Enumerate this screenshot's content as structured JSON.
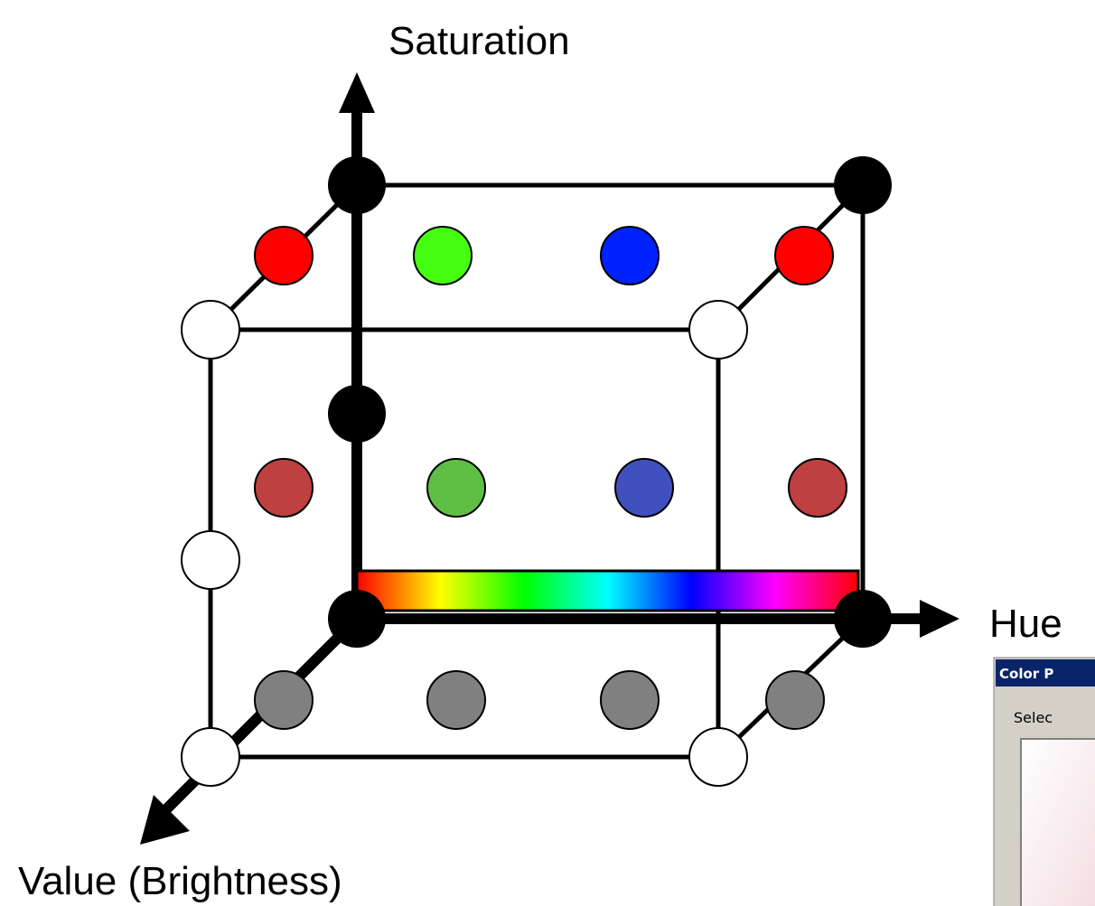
{
  "axes": {
    "saturation_label": "Saturation",
    "hue_label": "Hue",
    "value_label": "Value (Brightness)"
  },
  "hue_bar": {
    "colors": [
      "#ff0000",
      "#ffff00",
      "#00ff00",
      "#00ffff",
      "#0000ff",
      "#ff00ff",
      "#ff0000"
    ]
  },
  "swatch_colors": {
    "corner": "#000000",
    "white": "#ffffff",
    "top_row": [
      "#ff0000",
      "#44ff11",
      "#0022ff",
      "#ff0000"
    ],
    "middle_row": [
      "#bf4040",
      "#5fbf45",
      "#4050bf",
      "#bf4040"
    ],
    "bottom_row": [
      "#808080",
      "#808080",
      "#808080",
      "#808080"
    ]
  },
  "color_picker_window": {
    "title": "Color P",
    "label": "Selec",
    "titlebar_color": "#0a246a",
    "body_color": "#d4d0c8"
  }
}
